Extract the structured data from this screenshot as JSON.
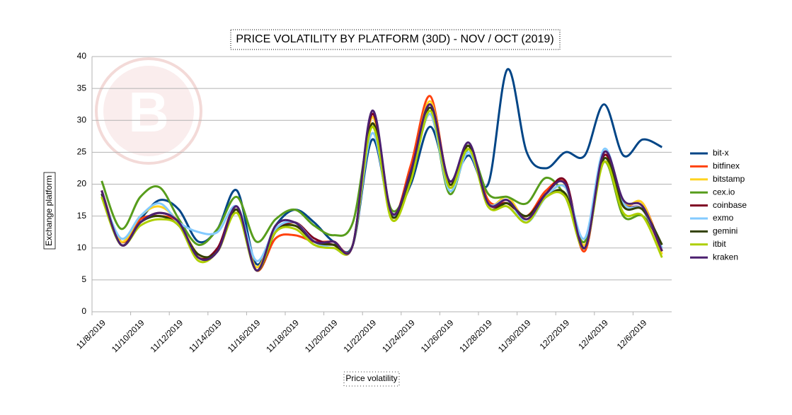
{
  "chart_data": {
    "type": "line",
    "title": "PRICE VOLATILITY BY PLATFORM (30D) - NOV / OCT (2019)",
    "x_label": "Price volatility",
    "y_label": "Exchange platform",
    "categories": [
      "11/8/2019",
      null,
      "11/10/2019",
      null,
      "11/12/2019",
      null,
      "11/14/2019",
      null,
      "11/16/2019",
      null,
      "11/18/2019",
      null,
      "11/20/2019",
      null,
      "11/22/2019",
      null,
      "11/24/2019",
      null,
      "11/26/2019",
      null,
      "11/28/2019",
      null,
      "11/30/2019",
      null,
      "12/2/2019",
      null,
      "12/4/2019",
      null,
      "12/6/2019",
      null
    ],
    "ylim": [
      0,
      40
    ],
    "yticks": [
      0,
      5,
      10,
      15,
      20,
      25,
      30,
      35,
      40
    ],
    "grid": true,
    "legend": "right",
    "smooth": true,
    "series": [
      {
        "name": "bit-x",
        "color": "#004586",
        "values": [
          19,
          11,
          14.5,
          17.5,
          16,
          11,
          13,
          19,
          7.5,
          13.5,
          16,
          14,
          11,
          10.5,
          27,
          15.5,
          20,
          29,
          20.5,
          24.5,
          20,
          38,
          25,
          22.5,
          25,
          24.5,
          32.5,
          24.5,
          27,
          25.8
        ]
      },
      {
        "name": "bitfinex",
        "color": "#ff420e",
        "values": [
          19,
          11,
          14.5,
          15,
          14,
          8.5,
          9.5,
          16,
          6.5,
          11.5,
          12,
          11,
          11,
          10.5,
          30.5,
          15,
          23,
          33.8,
          20,
          26,
          17.5,
          17,
          15,
          19,
          20,
          9.5,
          25,
          17,
          17,
          9.5
        ]
      },
      {
        "name": "bitstamp",
        "color": "#ffd320",
        "values": [
          18,
          11,
          15,
          16.5,
          14,
          9,
          9.5,
          16,
          7,
          13,
          13.5,
          11,
          10.5,
          10.5,
          30.5,
          14.5,
          21.5,
          33,
          20,
          26,
          17,
          18,
          14.5,
          18,
          19.5,
          10.5,
          24.5,
          17,
          17,
          9
        ]
      },
      {
        "name": "cex.io",
        "color": "#579d1c",
        "values": [
          20.5,
          13,
          18,
          19.5,
          14.5,
          10.5,
          13,
          18,
          11,
          14.5,
          16,
          13.5,
          12,
          14,
          29,
          16,
          21,
          31,
          18.5,
          25.5,
          18.5,
          18,
          17,
          21,
          18,
          11,
          23.5,
          15,
          15,
          10.5
        ]
      },
      {
        "name": "coinbase",
        "color": "#7e0021",
        "values": [
          19,
          10.5,
          14,
          15.5,
          14,
          8.5,
          10,
          16.5,
          6.5,
          12.5,
          14,
          11.5,
          10.5,
          10.5,
          31,
          15.5,
          22,
          32.5,
          20.5,
          26,
          17,
          17,
          15,
          18.5,
          20.5,
          10,
          24.5,
          17,
          16,
          9.5
        ]
      },
      {
        "name": "exmo",
        "color": "#83caff",
        "values": [
          18.5,
          11.5,
          15,
          17,
          14,
          12.5,
          12.5,
          16.5,
          8,
          13,
          14,
          11,
          10,
          10.5,
          28,
          15,
          21.5,
          31,
          19,
          25,
          17,
          17.5,
          14,
          18,
          19.5,
          11.5,
          25.5,
          17,
          16,
          10
        ]
      },
      {
        "name": "gemini",
        "color": "#314004",
        "values": [
          18.5,
          10.5,
          14,
          15,
          13.5,
          9,
          9.5,
          16,
          6.5,
          12.5,
          13.5,
          11,
          10.5,
          10.5,
          29.5,
          15,
          21,
          32,
          20,
          26,
          16.5,
          17,
          15,
          18,
          18.5,
          10,
          24,
          16.5,
          16,
          10.5
        ]
      },
      {
        "name": "itbit",
        "color": "#aecf00",
        "values": [
          18,
          10.5,
          13.5,
          14.5,
          13.5,
          8,
          9.5,
          15.5,
          6.5,
          12.5,
          13,
          10.5,
          10,
          10.5,
          29,
          14.5,
          20.5,
          31.5,
          19.5,
          25.5,
          16.5,
          16.5,
          14,
          18,
          18,
          10,
          23.5,
          15.5,
          15,
          8.5
        ]
      },
      {
        "name": "kraken",
        "color": "#4b1f6f",
        "values": [
          19,
          10.5,
          14,
          15.5,
          14,
          8.5,
          9.5,
          16.5,
          6.5,
          13.5,
          14,
          11,
          11,
          10.5,
          31.5,
          15.5,
          22,
          32.5,
          20.5,
          26.5,
          17,
          17.5,
          14.5,
          18.5,
          20,
          10,
          25,
          17.5,
          16.5,
          9.5
        ]
      }
    ]
  }
}
